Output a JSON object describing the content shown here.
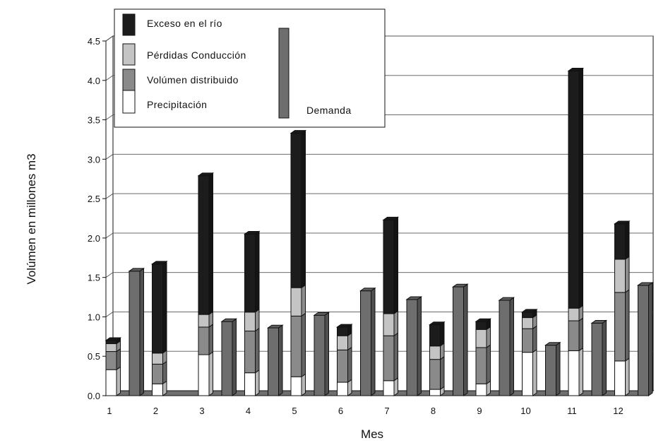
{
  "chart_data": {
    "type": "bar",
    "subtype": "stacked-3d-with-adjacent-demand",
    "categories": [
      "1",
      "2",
      "3",
      "4",
      "5",
      "6",
      "7",
      "8",
      "9",
      "10",
      "11",
      "12"
    ],
    "xlabel": "Mes",
    "ylabel": "Volúmen en millones m3",
    "ylim": [
      0,
      4.5
    ],
    "yticks": [
      "0.0",
      "0.5",
      "1.0",
      "1.5",
      "2.0",
      "2.5",
      "3.0",
      "3.5",
      "4.0",
      "4.5"
    ],
    "grid": true,
    "legend_position": "top-left",
    "stacked_series": [
      {
        "name": "Precipitación",
        "color": "#ffffff",
        "values": [
          0.33,
          0.15,
          0.52,
          0.29,
          0.24,
          0.17,
          0.19,
          0.08,
          0.15,
          0.55,
          0.57,
          0.44
        ]
      },
      {
        "name": "Volúmen distribuido",
        "color": "#8a8a8a",
        "values": [
          0.23,
          0.25,
          0.35,
          0.53,
          0.77,
          0.41,
          0.57,
          0.38,
          0.46,
          0.3,
          0.38,
          0.87
        ]
      },
      {
        "name": "Pérdidas Conducción",
        "color": "#c4c4c4",
        "values": [
          0.1,
          0.14,
          0.16,
          0.24,
          0.36,
          0.18,
          0.28,
          0.17,
          0.23,
          0.14,
          0.16,
          0.42
        ]
      },
      {
        "name": "Exceso en el río",
        "color": "#1c1c1c",
        "values": [
          0.04,
          1.13,
          1.76,
          0.99,
          1.96,
          0.11,
          1.19,
          0.27,
          0.1,
          0.07,
          3.01,
          0.45
        ]
      }
    ],
    "demand_series": {
      "name": "Demanda",
      "color": "#6e6e6e",
      "values": [
        1.58,
        0,
        0.94,
        0.86,
        1.02,
        1.33,
        1.22,
        1.38,
        1.21,
        0.64,
        0.92,
        1.4
      ]
    },
    "extra_demand_value": 1.03
  }
}
